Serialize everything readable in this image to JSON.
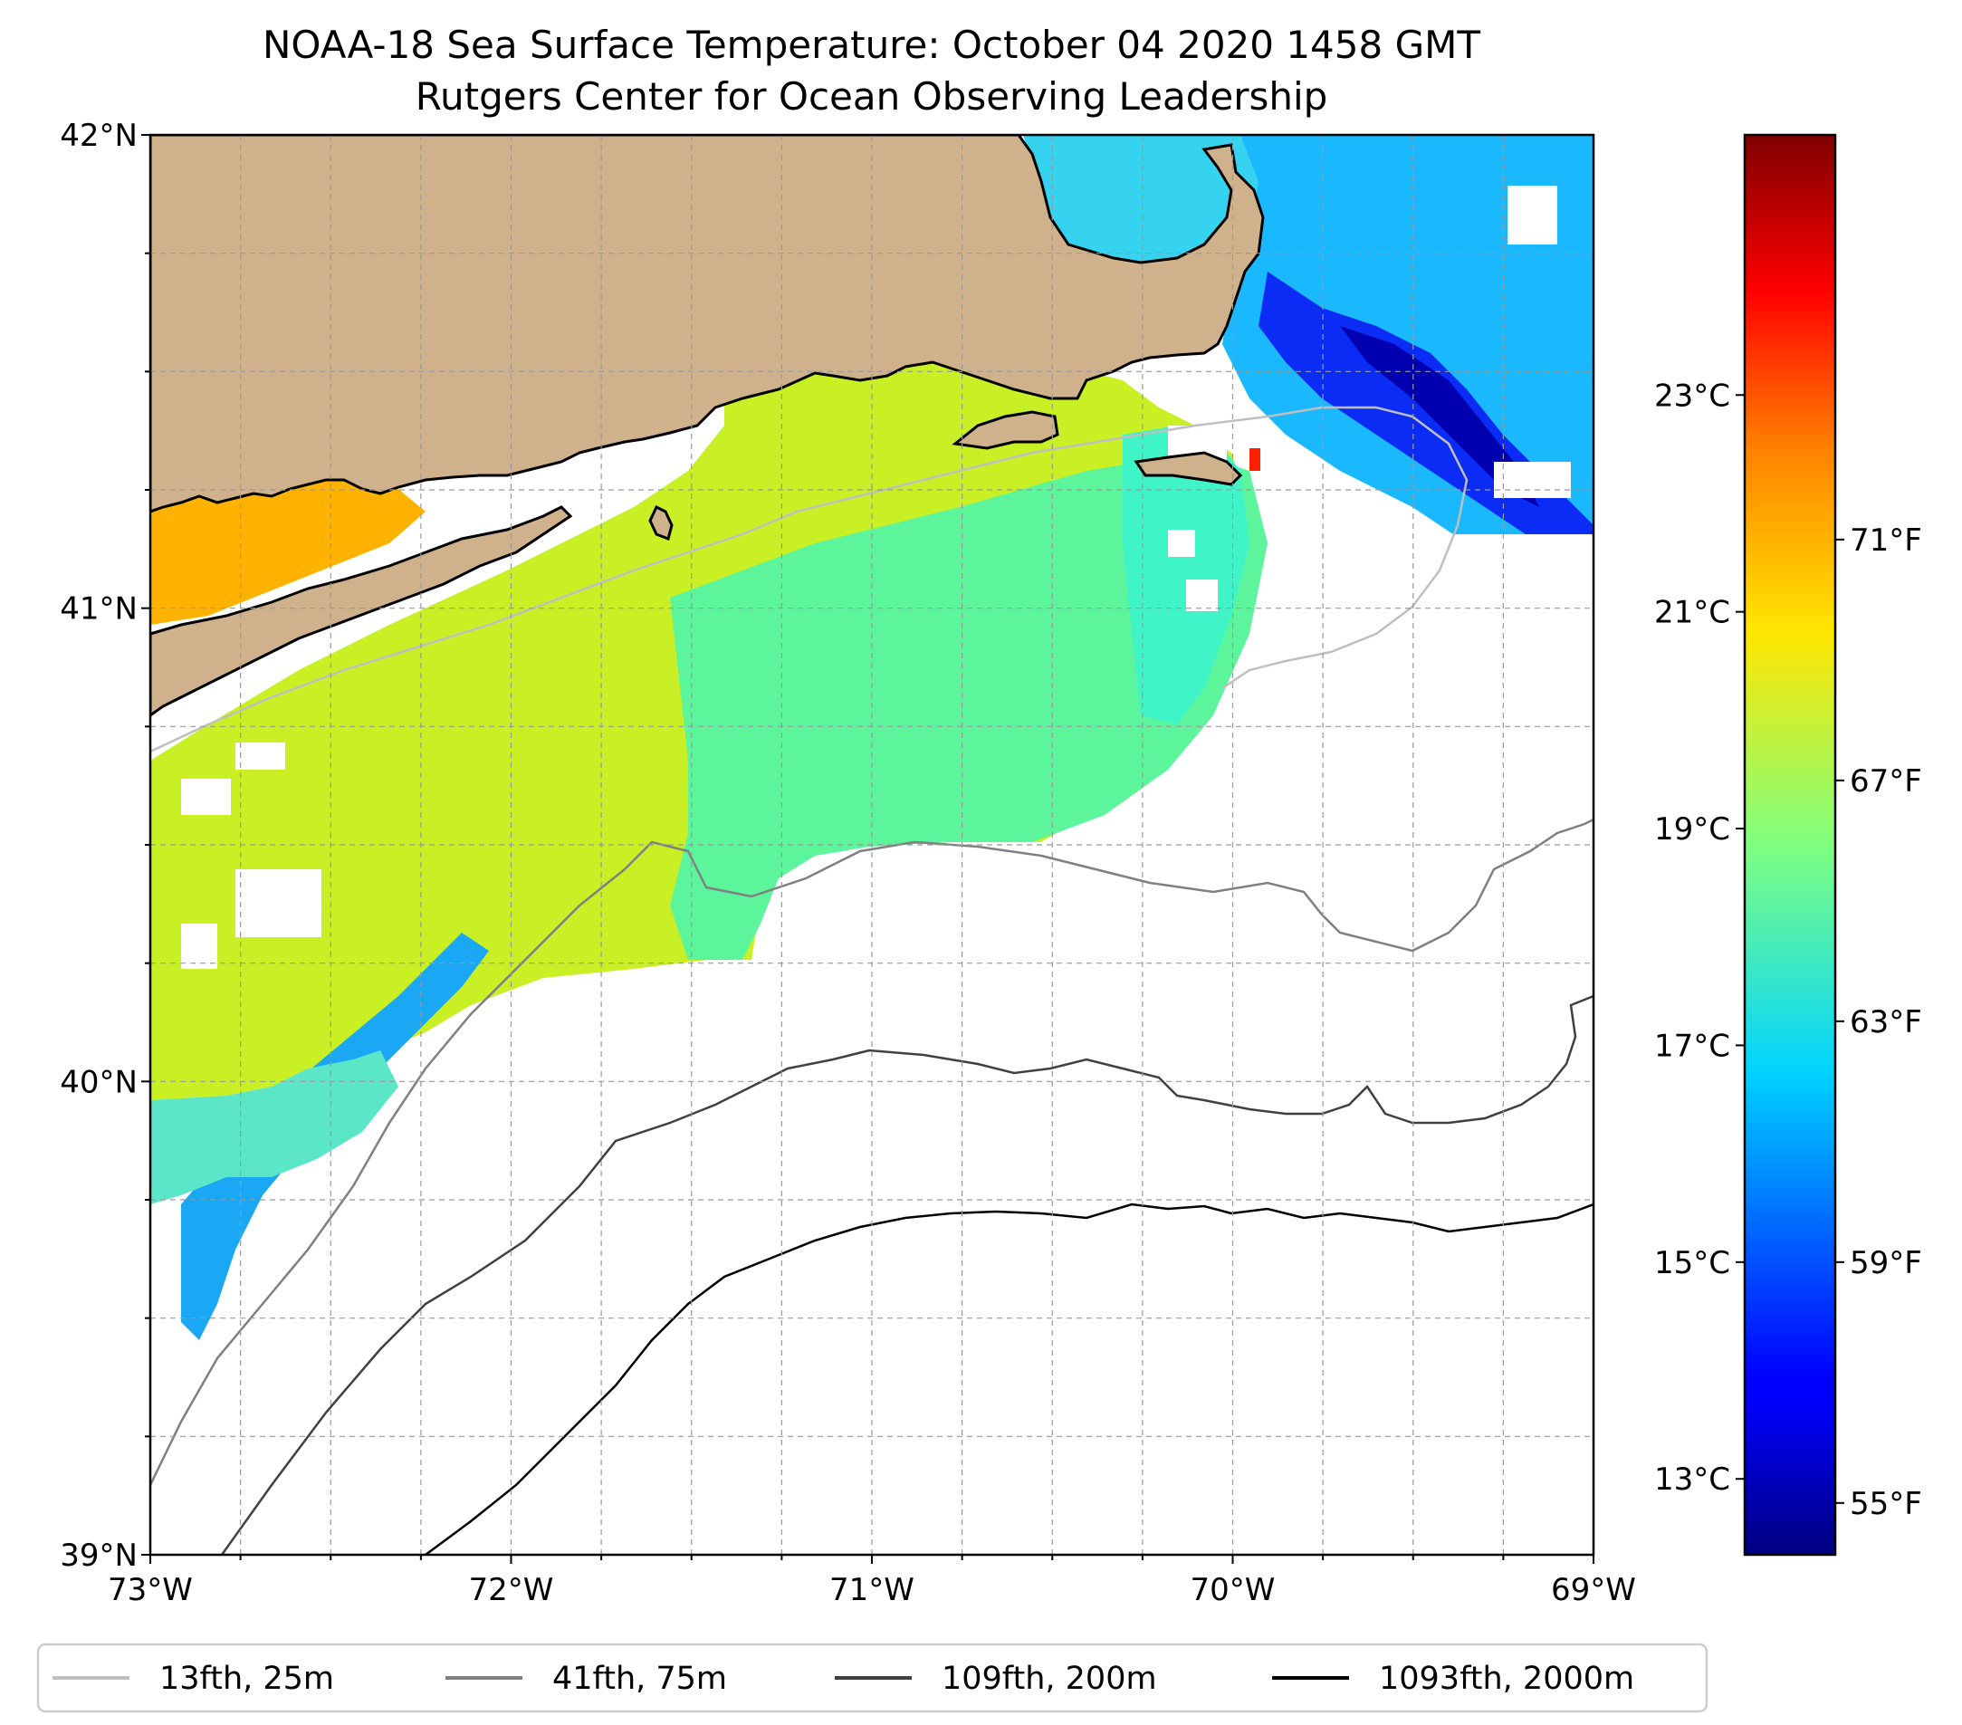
{
  "title": {
    "line1": "NOAA-18 Sea Surface Temperature: October 04 2020 1458 GMT",
    "line2": "Rutgers Center for Ocean Observing Leadership"
  },
  "map": {
    "lon_range": [
      -73,
      -69
    ],
    "lat_range": [
      39,
      42
    ],
    "lon_ticks": [
      {
        "value": -73,
        "label": "73°W"
      },
      {
        "value": -72,
        "label": "72°W"
      },
      {
        "value": -71,
        "label": "71°W"
      },
      {
        "value": -70,
        "label": "70°W"
      },
      {
        "value": -69,
        "label": "69°W"
      }
    ],
    "lat_ticks": [
      {
        "value": 42,
        "label": "42°N"
      },
      {
        "value": 41,
        "label": "41°N"
      },
      {
        "value": 40,
        "label": "40°N"
      },
      {
        "value": 39,
        "label": "39°N"
      }
    ],
    "grid": "dashed every 0.25°",
    "land_color": "#cfb28b",
    "no_data_color": "#ffffff",
    "colormap": "jet"
  },
  "colorbar": {
    "celsius_range": [
      12.3,
      25.4
    ],
    "celsius_ticks": [
      "13°C",
      "15°C",
      "17°C",
      "19°C",
      "21°C",
      "23°C"
    ],
    "fahrenheit_ticks": [
      "55°F",
      "59°F",
      "63°F",
      "67°F",
      "71°F"
    ]
  },
  "legend": {
    "position": "bottom",
    "items": [
      {
        "label": "13fth, 25m",
        "color": "#bfbfbf"
      },
      {
        "label": "41fth, 75m",
        "color": "#808080"
      },
      {
        "label": "109fth, 200m",
        "color": "#404040"
      },
      {
        "label": "1093fth, 2000m",
        "color": "#000000"
      }
    ]
  }
}
